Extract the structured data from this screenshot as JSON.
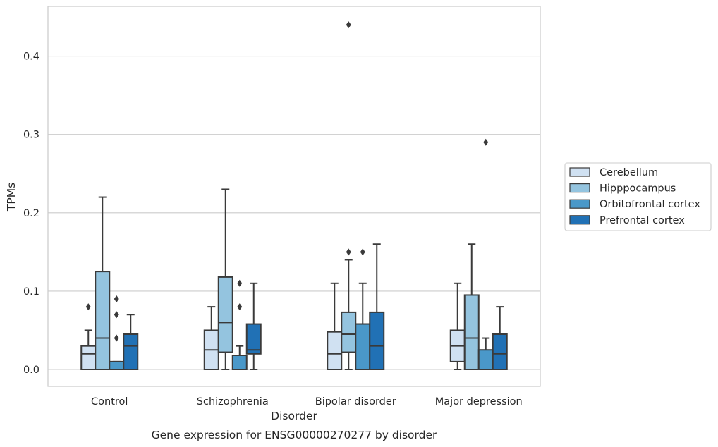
{
  "chart_data": {
    "type": "box",
    "title": "Gene expression for ENSG00000270277 by disorder",
    "xlabel": "Disorder",
    "ylabel": "TPMs",
    "ylim": [
      -0.021,
      0.465
    ],
    "yticks": [
      0.0,
      0.1,
      0.2,
      0.3,
      0.4
    ],
    "ytick_labels": [
      "0.0",
      "0.1",
      "0.2",
      "0.3",
      "0.4"
    ],
    "grid": true,
    "legend_position": "center-right, outside plot",
    "categories": [
      "Control",
      "Schizophrenia",
      "Bipolar disorder",
      "Major depression"
    ],
    "series": [
      {
        "name": "Cerebellum",
        "color": "#d0e1f2",
        "boxes": [
          {
            "whislo": 0.0,
            "q1": 0.0,
            "med": 0.02,
            "q3": 0.03,
            "whishi": 0.05,
            "fliers": [
              0.08
            ]
          },
          {
            "whislo": 0.0,
            "q1": 0.0,
            "med": 0.025,
            "q3": 0.05,
            "whishi": 0.08,
            "fliers": []
          },
          {
            "whislo": 0.0,
            "q1": 0.0,
            "med": 0.02,
            "q3": 0.048,
            "whishi": 0.11,
            "fliers": []
          },
          {
            "whislo": 0.0,
            "q1": 0.01,
            "med": 0.03,
            "q3": 0.05,
            "whishi": 0.11,
            "fliers": []
          }
        ]
      },
      {
        "name": "Hipppocampus",
        "color": "#94c4df",
        "boxes": [
          {
            "whislo": 0.0,
            "q1": 0.0,
            "med": 0.04,
            "q3": 0.125,
            "whishi": 0.22,
            "fliers": []
          },
          {
            "whislo": 0.0,
            "q1": 0.022,
            "med": 0.06,
            "q3": 0.118,
            "whishi": 0.23,
            "fliers": []
          },
          {
            "whislo": 0.0,
            "q1": 0.022,
            "med": 0.045,
            "q3": 0.073,
            "whishi": 0.14,
            "fliers": [
              0.15,
              0.44
            ]
          },
          {
            "whislo": 0.0,
            "q1": 0.0,
            "med": 0.04,
            "q3": 0.095,
            "whishi": 0.16,
            "fliers": []
          }
        ]
      },
      {
        "name": "Orbitofrontal cortex",
        "color": "#4a98c9",
        "boxes": [
          {
            "whislo": 0.0,
            "q1": 0.0,
            "med": 0.0,
            "q3": 0.01,
            "whishi": 0.01,
            "fliers": [
              0.04,
              0.07,
              0.09
            ]
          },
          {
            "whislo": 0.0,
            "q1": 0.0,
            "med": 0.0,
            "q3": 0.018,
            "whishi": 0.03,
            "fliers": [
              0.08,
              0.11
            ]
          },
          {
            "whislo": 0.0,
            "q1": 0.0,
            "med": 0.058,
            "q3": 0.058,
            "whishi": 0.11,
            "fliers": [
              0.15
            ]
          },
          {
            "whislo": 0.0,
            "q1": 0.0,
            "med": 0.0,
            "q3": 0.025,
            "whishi": 0.04,
            "fliers": [
              0.29
            ]
          }
        ]
      },
      {
        "name": "Prefrontal cortex",
        "color": "#2171b5",
        "boxes": [
          {
            "whislo": 0.0,
            "q1": 0.0,
            "med": 0.03,
            "q3": 0.045,
            "whishi": 0.07,
            "fliers": []
          },
          {
            "whislo": 0.0,
            "q1": 0.02,
            "med": 0.025,
            "q3": 0.058,
            "whishi": 0.11,
            "fliers": []
          },
          {
            "whislo": 0.0,
            "q1": 0.0,
            "med": 0.03,
            "q3": 0.073,
            "whishi": 0.16,
            "fliers": []
          },
          {
            "whislo": 0.0,
            "q1": 0.0,
            "med": 0.02,
            "q3": 0.045,
            "whishi": 0.08,
            "fliers": []
          }
        ]
      }
    ]
  }
}
